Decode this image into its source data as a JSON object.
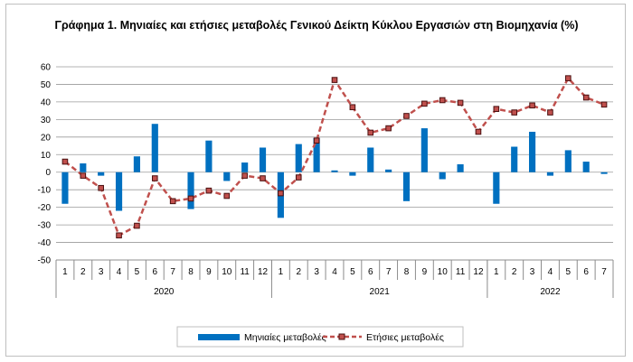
{
  "chart_data": {
    "type": "bar+line",
    "title": "Γράφημα 1. Μηνιαίες και ετήσιες μεταβολές  Γενικού Δείκτη Κύκλου Εργασιών στη Βιομηχανία (%)",
    "categories": [
      "1",
      "2",
      "3",
      "4",
      "5",
      "6",
      "7",
      "8",
      "9",
      "10",
      "11",
      "12",
      "1",
      "2",
      "3",
      "4",
      "5",
      "6",
      "7",
      "8",
      "9",
      "10",
      "11",
      "12",
      "1",
      "2",
      "3",
      "4",
      "5",
      "6",
      "7"
    ],
    "years": [
      {
        "label": "2020",
        "start": 0,
        "count": 12
      },
      {
        "label": "2021",
        "start": 12,
        "count": 12
      },
      {
        "label": "2022",
        "start": 24,
        "count": 7
      }
    ],
    "series": [
      {
        "name": "Μηνιαίες μεταβολές",
        "kind": "bar",
        "color": "#0070c0",
        "values": [
          -18,
          5,
          -2,
          -22,
          9,
          27.5,
          0,
          -21,
          18,
          -5,
          5.5,
          14,
          -26,
          16,
          19.5,
          1,
          -2,
          14,
          1.5,
          -16.5,
          25,
          -4,
          4.5,
          0,
          -18,
          14.5,
          23,
          -2,
          12.5,
          6,
          -1
        ]
      },
      {
        "name": "Ετήσιες μεταβολές",
        "kind": "line",
        "color": "#c0504d",
        "values": [
          6,
          -2,
          -9,
          -36,
          -30.5,
          -3.5,
          -16.5,
          -15,
          -10.5,
          -13.5,
          -2,
          -3.5,
          -12,
          -3,
          18,
          52.5,
          37,
          22.5,
          25,
          32,
          39,
          41,
          39.5,
          23,
          36,
          34,
          38,
          34,
          53.5,
          42.5,
          38.5
        ]
      }
    ],
    "ylim": [
      -50,
      60
    ],
    "yticks": [
      -50,
      -40,
      -30,
      -20,
      -10,
      0,
      10,
      20,
      30,
      40,
      50,
      60
    ],
    "grid": true,
    "legend": "bottom"
  }
}
